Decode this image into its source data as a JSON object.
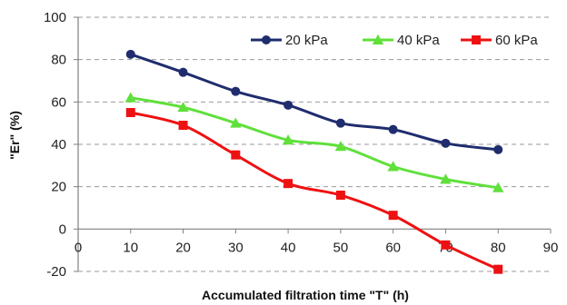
{
  "chart_data": {
    "type": "line",
    "title": "",
    "xlabel": "Accumulated filtration time \"T\" (h)",
    "ylabel": "\"Er\" (%)",
    "xlim": [
      0,
      90
    ],
    "ylim": [
      -20,
      100
    ],
    "x_ticks": [
      "0",
      "10",
      "20",
      "30",
      "40",
      "50",
      "60",
      "70",
      "80",
      "90"
    ],
    "y_ticks": [
      "-20",
      "0",
      "20",
      "40",
      "60",
      "80",
      "100"
    ],
    "grid": "horizontal dashed",
    "legend_position": "top-right",
    "x": [
      10,
      20,
      30,
      40,
      50,
      60,
      70,
      80
    ],
    "series": [
      {
        "name": "20 kPa",
        "color": "#1f2d6e",
        "marker": "circle",
        "values": [
          82.5,
          74,
          65,
          58.5,
          50,
          47,
          40.5,
          37.5
        ]
      },
      {
        "name": "40  kPa",
        "color": "#5fe03a",
        "marker": "triangle",
        "values": [
          62,
          57.5,
          50,
          42,
          39,
          29.5,
          23.5,
          19.5
        ]
      },
      {
        "name": "60  kPa",
        "color": "#ee1111",
        "marker": "square",
        "values": [
          55,
          49,
          35,
          21.5,
          16,
          6.5,
          -7.5,
          -19
        ]
      }
    ]
  }
}
